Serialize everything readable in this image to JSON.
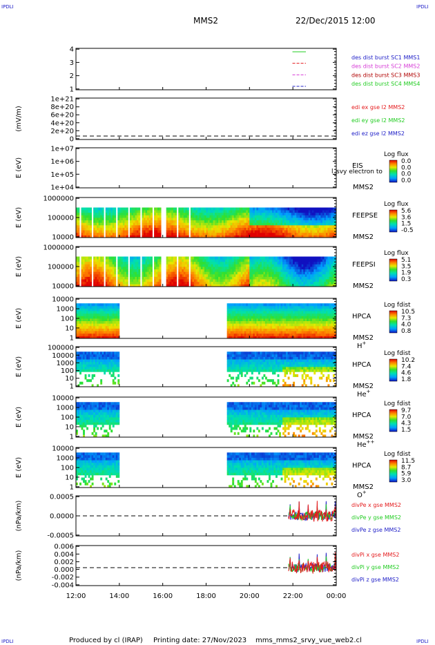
{
  "header": {
    "corner_label": "IPDLI",
    "spacecraft": "MMS2",
    "date_time": "22/Dec/2015 12:00"
  },
  "footer": {
    "producer": "Produced by cl (IRAP)",
    "printing": "Printing date: 27/Nov/2023",
    "filename": "mms_mms2_srvy_vue_web2.cl"
  },
  "colors": {
    "bg": "#ffffff",
    "frame": "#000000",
    "red": "#e41a1c",
    "magenta": "#d63bd6",
    "green": "#22cc22",
    "blue": "#2020c8",
    "dark_red": "#b00000"
  },
  "chart_data": [
    {
      "id": "p1",
      "type": "line",
      "ylabel": "",
      "yticks": [
        "1",
        "2",
        "3",
        "4"
      ],
      "ylim": [
        0.7,
        4.3
      ],
      "side_labels": [
        {
          "text": "des dist burst SC1 MMS1",
          "color": "#2020c8"
        },
        {
          "text": "des dist burst SC2 MMS2",
          "color": "#d63bd6"
        },
        {
          "text": "des dist burst SC3 MMS3",
          "color": "#b00000"
        },
        {
          "text": "des dist burst SC4 MMS4",
          "color": "#22cc22"
        }
      ],
      "series": [
        {
          "color": "#22cc22",
          "level": 4,
          "x": [
            21.98,
            22.6
          ]
        },
        {
          "color": "#e41a1c",
          "level": 3,
          "x": [
            21.98,
            22.6
          ]
        },
        {
          "color": "#d63bd6",
          "level": 2,
          "x": [
            21.98,
            22.6
          ]
        },
        {
          "color": "#2020c8",
          "level": 1,
          "x": [
            21.98,
            22.6
          ]
        }
      ]
    },
    {
      "id": "p2",
      "type": "line",
      "ylabel": "(mV/m)",
      "yticks": [
        "0",
        "2e+20",
        "4e+20",
        "6e+20",
        "8e+20",
        "1e+21"
      ],
      "ylim": [
        0,
        1e+21
      ],
      "zero_line": true,
      "side_labels": [
        {
          "text": "edi ex gse l2 MMS2",
          "color": "#e41a1c"
        },
        {
          "text": "edi ey gse l2 MMS2",
          "color": "#22cc22"
        },
        {
          "text": "edi ez gse l2 MMS2",
          "color": "#2020c8"
        }
      ]
    },
    {
      "id": "p3",
      "type": "heatmap",
      "ylabel": "E (eV)",
      "yticks": [
        "1e+04",
        "1e+05",
        "1e+06",
        "1e+07"
      ],
      "instrument": [
        "EIS",
        "MMS2"
      ],
      "overlay_text": "l_svy electron to",
      "colorbar": {
        "title": "Log flux",
        "labels": [
          "0.0",
          "0.0",
          "0.0",
          "0.0"
        ]
      }
    },
    {
      "id": "p4",
      "type": "heatmap",
      "ylabel": "E (eV)",
      "yticks": [
        "10000",
        "100000",
        "1000000"
      ],
      "instrument": [
        "FEEPSE",
        "MMS2"
      ],
      "colorbar": {
        "title": "Log flux",
        "labels": [
          "5.6",
          "3.6",
          "1.5",
          "-0.5"
        ]
      }
    },
    {
      "id": "p5",
      "type": "heatmap",
      "ylabel": "E (eV)",
      "yticks": [
        "10000",
        "100000",
        "1000000"
      ],
      "instrument": [
        "FEEPSI",
        "MMS2"
      ],
      "colorbar": {
        "title": "Log flux",
        "labels": [
          "5.1",
          "3.5",
          "1.9",
          "0.3"
        ]
      }
    },
    {
      "id": "p6",
      "type": "heatmap",
      "ylabel": "E (eV)",
      "yticks": [
        "1",
        "10",
        "100",
        "1000",
        "10000"
      ],
      "instrument": [
        "HPCA",
        "MMS2"
      ],
      "species": "H",
      "species_sup": "+",
      "coverage": [
        [
          12.0,
          14.0
        ],
        [
          19.0,
          24.0
        ]
      ],
      "colorbar": {
        "title": "Log fdist",
        "labels": [
          "10.5",
          "7.3",
          "4.0",
          "0.8"
        ]
      }
    },
    {
      "id": "p7",
      "type": "heatmap",
      "ylabel": "E (eV)",
      "yticks": [
        "1",
        "10",
        "100",
        "1000",
        "10000",
        "100000"
      ],
      "instrument": [
        "HPCA",
        "MMS2"
      ],
      "species": "He",
      "species_sup": "+",
      "coverage": [
        [
          12.0,
          14.0
        ],
        [
          19.0,
          24.0
        ]
      ],
      "colorbar": {
        "title": "Log fdist",
        "labels": [
          "10.2",
          "7.4",
          "4.6",
          "1.8"
        ]
      }
    },
    {
      "id": "p8",
      "type": "heatmap",
      "ylabel": "E (eV)",
      "yticks": [
        "1",
        "10",
        "100",
        "1000",
        "10000"
      ],
      "instrument": [
        "HPCA",
        "MMS2"
      ],
      "species": "He",
      "species_sup": "++",
      "coverage": [
        [
          12.0,
          14.0
        ],
        [
          19.0,
          24.0
        ]
      ],
      "colorbar": {
        "title": "Log fdist",
        "labels": [
          "9.7",
          "7.0",
          "4.3",
          "1.5"
        ]
      }
    },
    {
      "id": "p9",
      "type": "heatmap",
      "ylabel": "E (eV)",
      "yticks": [
        "1",
        "10",
        "100",
        "1000",
        "10000"
      ],
      "instrument": [
        "HPCA",
        "MMS2"
      ],
      "species": "O",
      "species_sup": "+",
      "coverage": [
        [
          12.0,
          14.0
        ],
        [
          19.0,
          24.0
        ]
      ],
      "colorbar": {
        "title": "Log fdist",
        "labels": [
          "11.5",
          "8.7",
          "5.9",
          "3.0"
        ]
      }
    },
    {
      "id": "p10",
      "type": "line",
      "ylabel": "(nPa/km)",
      "yticks": [
        "-0.0005",
        "0.0000",
        "0.0005"
      ],
      "ylim": [
        -0.00095,
        0.00095
      ],
      "zero_line": true,
      "data_start": 21.8,
      "side_labels": [
        {
          "text": "divPe x gse MMS2",
          "color": "#e41a1c"
        },
        {
          "text": "divPe y gse MMS2",
          "color": "#22cc22"
        },
        {
          "text": "divPe z gse MMS2",
          "color": "#2020c8"
        }
      ]
    },
    {
      "id": "p11",
      "type": "line",
      "ylabel": "(nPa/km)",
      "yticks": [
        "-0.004",
        "-0.002",
        "0.000",
        "0.002",
        "0.004",
        "0.006"
      ],
      "ylim": [
        -0.0055,
        0.0068
      ],
      "zero_line": true,
      "data_start": 21.8,
      "side_labels": [
        {
          "text": "divPi x gse MMS2",
          "color": "#e41a1c"
        },
        {
          "text": "divPi y gse MMS2",
          "color": "#22cc22"
        },
        {
          "text": "divPi z gse MMS2",
          "color": "#2020c8"
        }
      ]
    }
  ],
  "time_axis": {
    "range_hours": [
      12,
      24
    ],
    "ticks": [
      "12:00",
      "14:00",
      "16:00",
      "18:00",
      "20:00",
      "22:00",
      "00:00"
    ]
  }
}
